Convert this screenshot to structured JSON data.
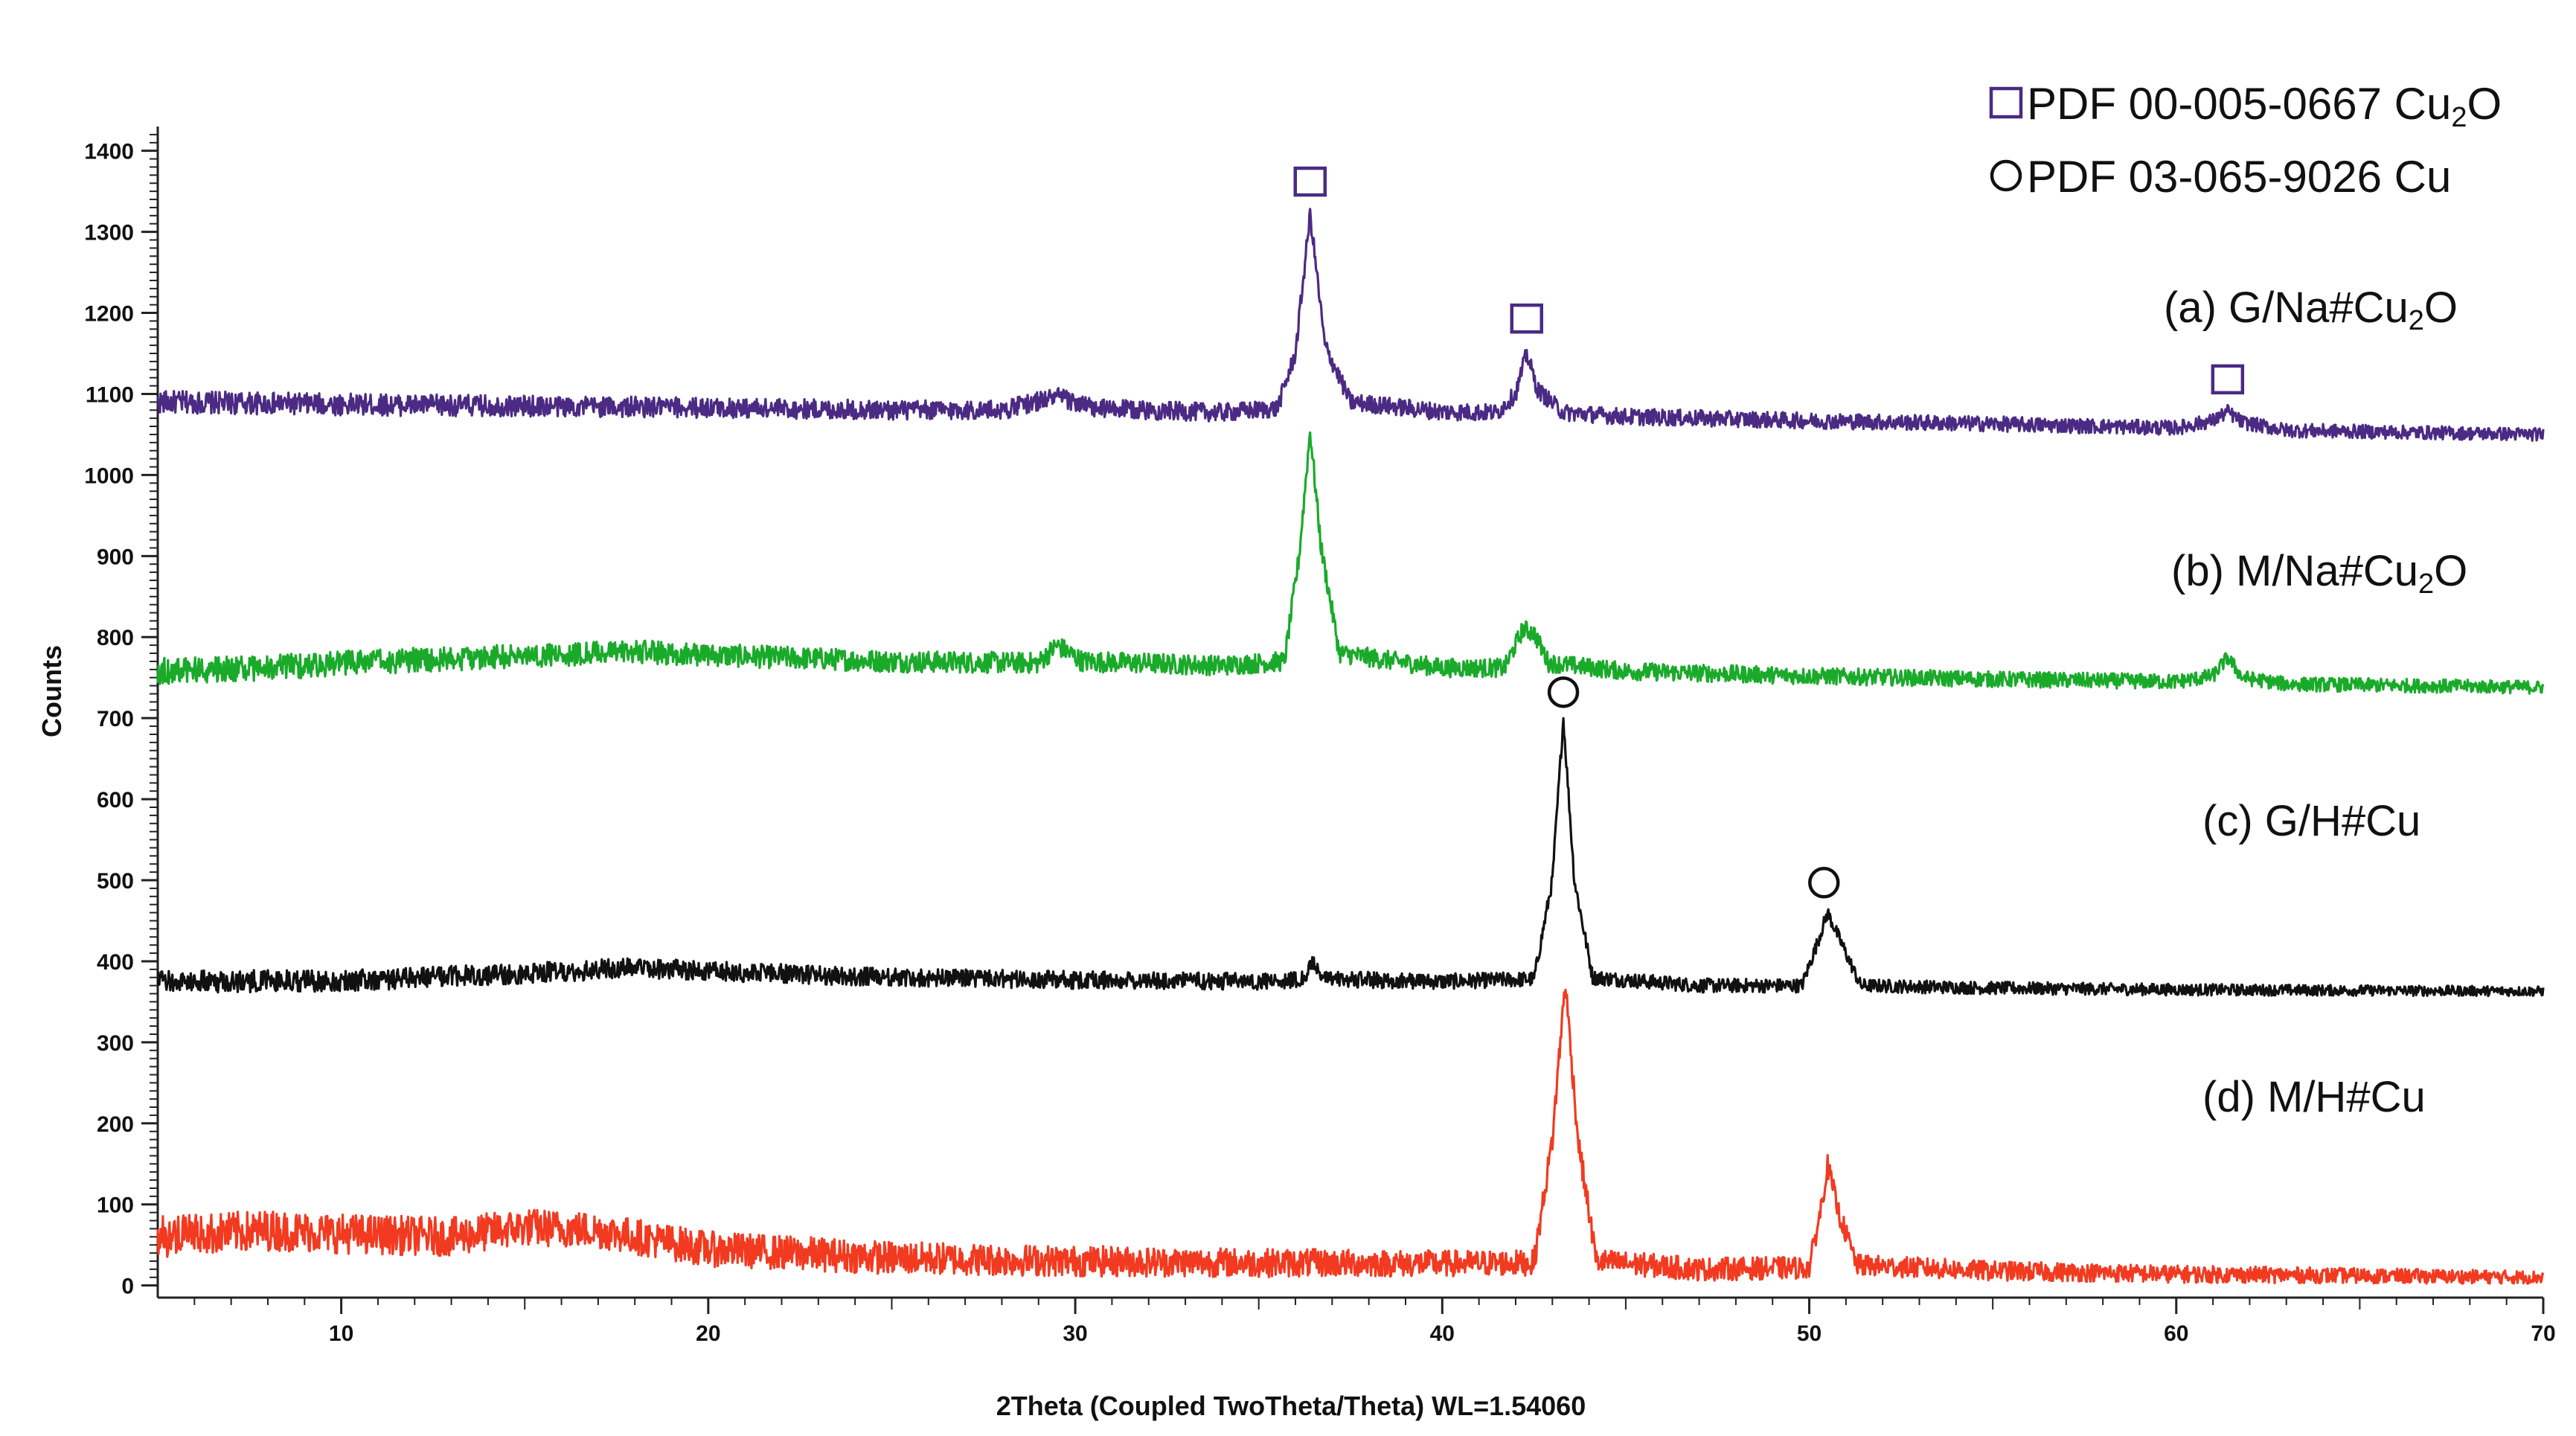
{
  "chart_data": {
    "type": "line",
    "title": "",
    "xlabel": "2Theta (Coupled TwoTheta/Theta) WL=1.54060",
    "ylabel": "Counts",
    "xlim": [
      5,
      70
    ],
    "ylim": [
      -15,
      1430
    ],
    "x_ticks": [
      10,
      20,
      30,
      40,
      50,
      60,
      70
    ],
    "y_ticks": [
      0,
      100,
      200,
      300,
      400,
      500,
      600,
      700,
      800,
      900,
      1000,
      1100,
      1200,
      1300,
      1400
    ],
    "grid": false,
    "legend_position": "top-right",
    "series": [
      {
        "name": "(a) G/Na#Cu₂O",
        "label_main": "(a) G/Na#Cu",
        "label_sub": "2",
        "label_tail": "O",
        "color": "#4b2a84",
        "points": [
          [
            5,
            1090
          ],
          [
            10,
            1087
          ],
          [
            15,
            1085
          ],
          [
            20,
            1083
          ],
          [
            25,
            1080
          ],
          [
            28,
            1080
          ],
          [
            29.5,
            1097
          ],
          [
            30.5,
            1082
          ],
          [
            34,
            1077
          ],
          [
            35.5,
            1082
          ],
          [
            36.0,
            1150
          ],
          [
            36.4,
            1322
          ],
          [
            36.8,
            1160
          ],
          [
            37.5,
            1090
          ],
          [
            40,
            1078
          ],
          [
            41.5,
            1077
          ],
          [
            42.0,
            1100
          ],
          [
            42.3,
            1150
          ],
          [
            42.6,
            1105
          ],
          [
            43.3,
            1077
          ],
          [
            45,
            1072
          ],
          [
            50,
            1067
          ],
          [
            55,
            1063
          ],
          [
            60,
            1058
          ],
          [
            61.0,
            1067
          ],
          [
            61.4,
            1078
          ],
          [
            61.8,
            1065
          ],
          [
            63,
            1055
          ],
          [
            70,
            1050
          ]
        ],
        "noise": [
          14,
          8
        ]
      },
      {
        "name": "(b) M/Na#Cu₂O",
        "label_main": "(b) M/Na#Cu",
        "label_sub": "2",
        "label_tail": "O",
        "color": "#1aaa2a",
        "points": [
          [
            5,
            758
          ],
          [
            8,
            762
          ],
          [
            10,
            768
          ],
          [
            15,
            777
          ],
          [
            18,
            782
          ],
          [
            20,
            778
          ],
          [
            25,
            770
          ],
          [
            29,
            768
          ],
          [
            29.5,
            790
          ],
          [
            30.2,
            770
          ],
          [
            34,
            765
          ],
          [
            35.7,
            770
          ],
          [
            36.1,
            900
          ],
          [
            36.4,
            1055
          ],
          [
            36.7,
            910
          ],
          [
            37.2,
            780
          ],
          [
            40,
            762
          ],
          [
            41.7,
            762
          ],
          [
            42.2,
            810
          ],
          [
            42.5,
            805
          ],
          [
            42.9,
            768
          ],
          [
            45,
            758
          ],
          [
            50,
            752
          ],
          [
            55,
            748
          ],
          [
            60,
            745
          ],
          [
            61.0,
            752
          ],
          [
            61.4,
            775
          ],
          [
            61.8,
            750
          ],
          [
            63,
            742
          ],
          [
            70,
            738
          ]
        ],
        "noise": [
          16,
          8
        ]
      },
      {
        "name": "(c) G/H#Cu",
        "label_main": "(c) G/H#Cu",
        "label_sub": "",
        "label_tail": "",
        "color": "#111111",
        "points": [
          [
            5,
            375
          ],
          [
            10,
            376
          ],
          [
            15,
            385
          ],
          [
            18,
            392
          ],
          [
            20,
            388
          ],
          [
            25,
            380
          ],
          [
            30,
            377
          ],
          [
            35,
            375
          ],
          [
            36.2,
            378
          ],
          [
            36.5,
            398
          ],
          [
            36.8,
            378
          ],
          [
            40,
            375
          ],
          [
            42.5,
            378
          ],
          [
            43.0,
            500
          ],
          [
            43.3,
            700
          ],
          [
            43.6,
            500
          ],
          [
            44.1,
            380
          ],
          [
            47,
            370
          ],
          [
            49.8,
            370
          ],
          [
            50.2,
            420
          ],
          [
            50.5,
            460
          ],
          [
            50.9,
            420
          ],
          [
            51.4,
            370
          ],
          [
            55,
            367
          ],
          [
            60,
            365
          ],
          [
            70,
            363
          ]
        ],
        "noise": [
          14,
          6
        ]
      },
      {
        "name": "(d) M/H#Cu",
        "label_main": "(d) M/H#Cu",
        "label_sub": "",
        "label_tail": "",
        "color": "#f23a20",
        "points": [
          [
            5,
            60
          ],
          [
            8,
            68
          ],
          [
            10,
            64
          ],
          [
            13,
            60
          ],
          [
            15,
            72
          ],
          [
            17,
            68
          ],
          [
            20,
            45
          ],
          [
            25,
            34
          ],
          [
            30,
            30
          ],
          [
            35,
            28
          ],
          [
            40,
            27
          ],
          [
            42.5,
            28
          ],
          [
            43.0,
            180
          ],
          [
            43.35,
            375
          ],
          [
            43.7,
            180
          ],
          [
            44.2,
            30
          ],
          [
            47,
            20
          ],
          [
            50.0,
            22
          ],
          [
            50.3,
            90
          ],
          [
            50.5,
            148
          ],
          [
            50.8,
            90
          ],
          [
            51.3,
            25
          ],
          [
            55,
            18
          ],
          [
            60,
            14
          ],
          [
            70,
            10
          ]
        ],
        "noise": [
          26,
          8
        ]
      }
    ],
    "markers": [
      {
        "shape": "square",
        "x": 36.4,
        "y": 1362,
        "color": "#4b2a84"
      },
      {
        "shape": "square",
        "x": 42.3,
        "y": 1193,
        "color": "#4b2a84"
      },
      {
        "shape": "square",
        "x": 61.4,
        "y": 1118,
        "color": "#4b2a84"
      },
      {
        "shape": "circle",
        "x": 43.3,
        "y": 732,
        "color": "#111111"
      },
      {
        "shape": "circle",
        "x": 50.4,
        "y": 497,
        "color": "#111111"
      }
    ],
    "legend": [
      {
        "shape": "square",
        "color": "#4b2a84",
        "text": "PDF 00-005-0667 Cu",
        "sub": "2",
        "tail": "O"
      },
      {
        "shape": "circle",
        "color": "#111111",
        "text": "PDF 03-065-9026 Cu",
        "sub": "",
        "tail": ""
      }
    ]
  }
}
